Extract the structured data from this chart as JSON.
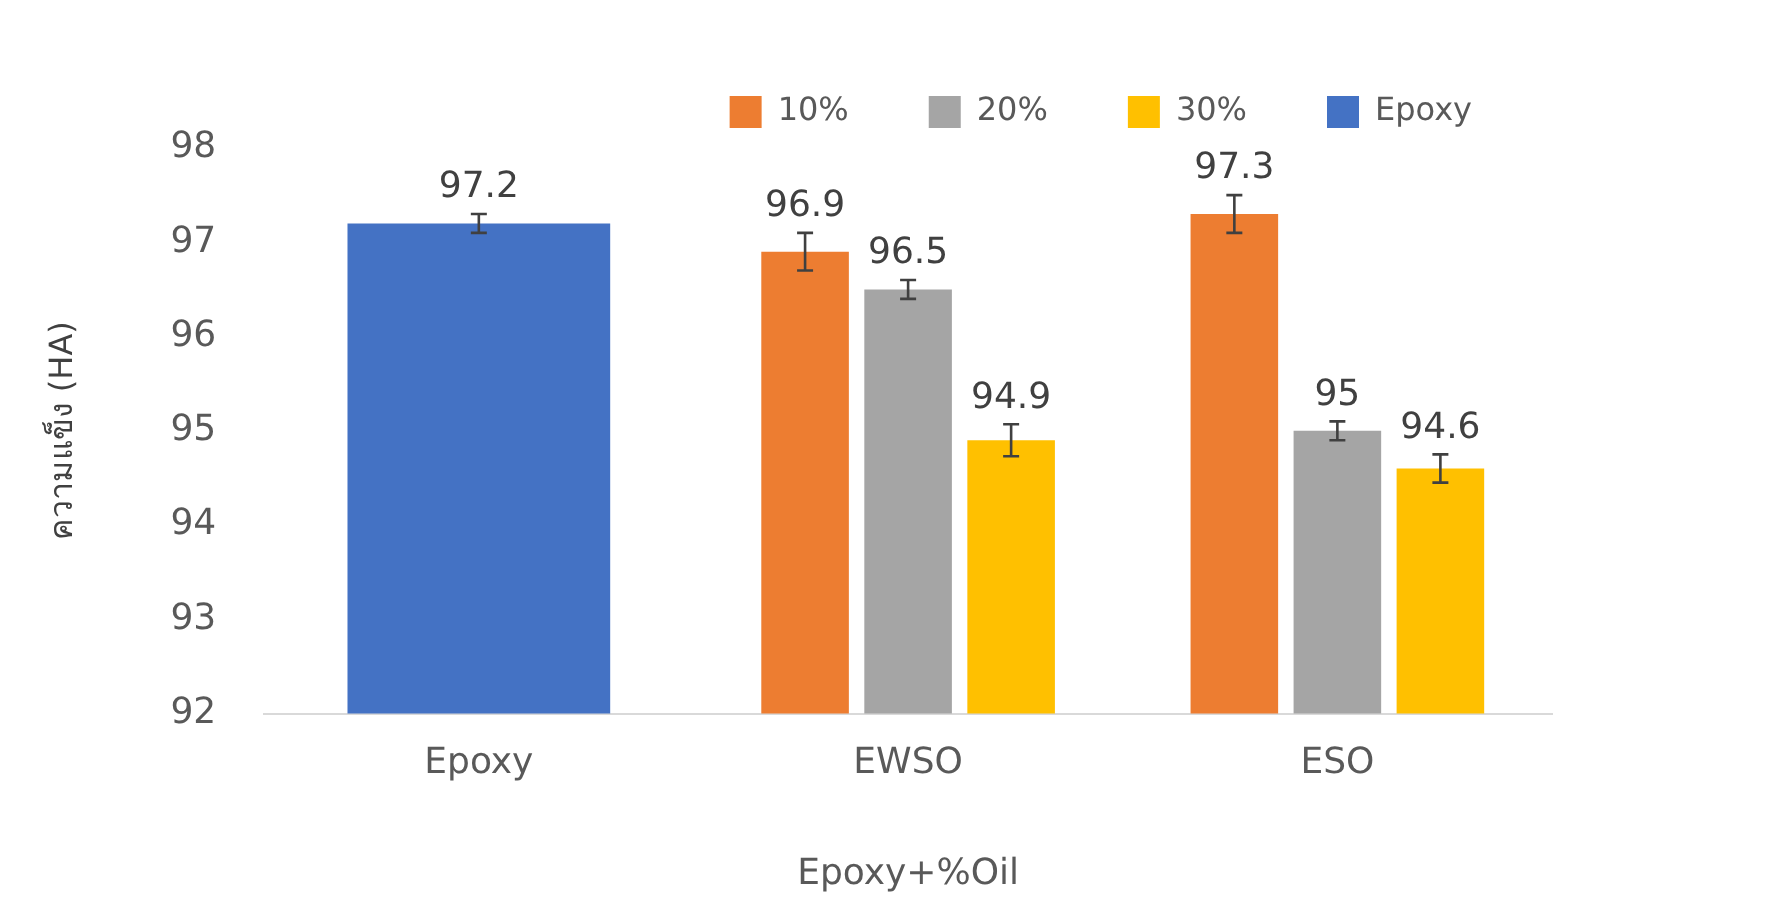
{
  "chart_data": {
    "type": "bar",
    "xlabel": "Epoxy+%Oil",
    "ylabel": "ความแข็ง (HA)",
    "categories": [
      "Epoxy",
      "EWSO",
      "ESO"
    ],
    "series": [
      {
        "name": "10%",
        "color": "#ed7d31",
        "values": [
          null,
          96.9,
          97.3
        ],
        "errors": [
          null,
          0.2,
          0.2
        ]
      },
      {
        "name": "20%",
        "color": "#a5a5a5",
        "values": [
          null,
          96.5,
          95
        ],
        "errors": [
          null,
          0.1,
          0.1
        ]
      },
      {
        "name": "30%",
        "color": "#ffc000",
        "values": [
          null,
          94.9,
          94.6
        ],
        "errors": [
          null,
          0.17,
          0.15
        ]
      },
      {
        "name": "Epoxy",
        "color": "#4472c4",
        "values": [
          97.2,
          null,
          null
        ],
        "errors": [
          0.1,
          null,
          null
        ]
      }
    ],
    "ylim": [
      92,
      98
    ],
    "yticks": [
      92,
      93,
      94,
      95,
      96,
      97,
      98
    ],
    "grid": false,
    "legend": "top right",
    "data_labels": true
  }
}
